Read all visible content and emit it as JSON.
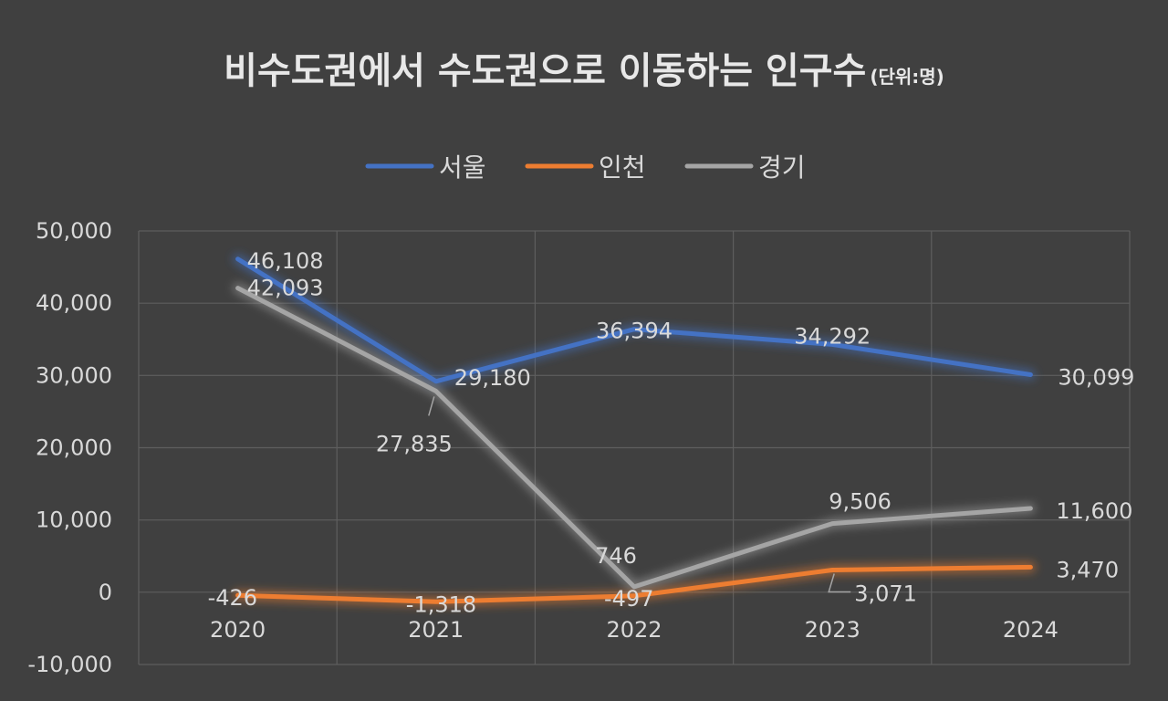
{
  "chart_data": {
    "type": "line",
    "title": "비수도권에서 수도권으로 이동하는 인구수",
    "title_unit": "(단위:명)",
    "categories": [
      "2020",
      "2021",
      "2022",
      "2023",
      "2024"
    ],
    "ylim": [
      -10000,
      50000
    ],
    "yticks": [
      50000,
      40000,
      30000,
      20000,
      10000,
      0,
      -10000
    ],
    "ytick_labels": [
      "50,000",
      "40,000",
      "30,000",
      "20,000",
      "10,000",
      "0",
      "-10,000"
    ],
    "grid": true,
    "legend_position": "top-center",
    "series": [
      {
        "name": "서울",
        "color": "#4472c4",
        "values": [
          46108,
          29180,
          36394,
          34292,
          30099
        ],
        "labels": [
          "46,108",
          "29,180",
          "36,394",
          "34,292",
          "30,099"
        ]
      },
      {
        "name": "인천",
        "color": "#ed7d31",
        "values": [
          -426,
          -1318,
          -497,
          3071,
          3470
        ],
        "labels": [
          "-426",
          "-1,318",
          "-497",
          "3,071",
          "3,470"
        ]
      },
      {
        "name": "경기",
        "color": "#a5a5a5",
        "values": [
          42093,
          27835,
          746,
          9506,
          11600
        ],
        "labels": [
          "42,093",
          "27,835",
          "746",
          "9,506",
          "11,600"
        ]
      }
    ]
  }
}
